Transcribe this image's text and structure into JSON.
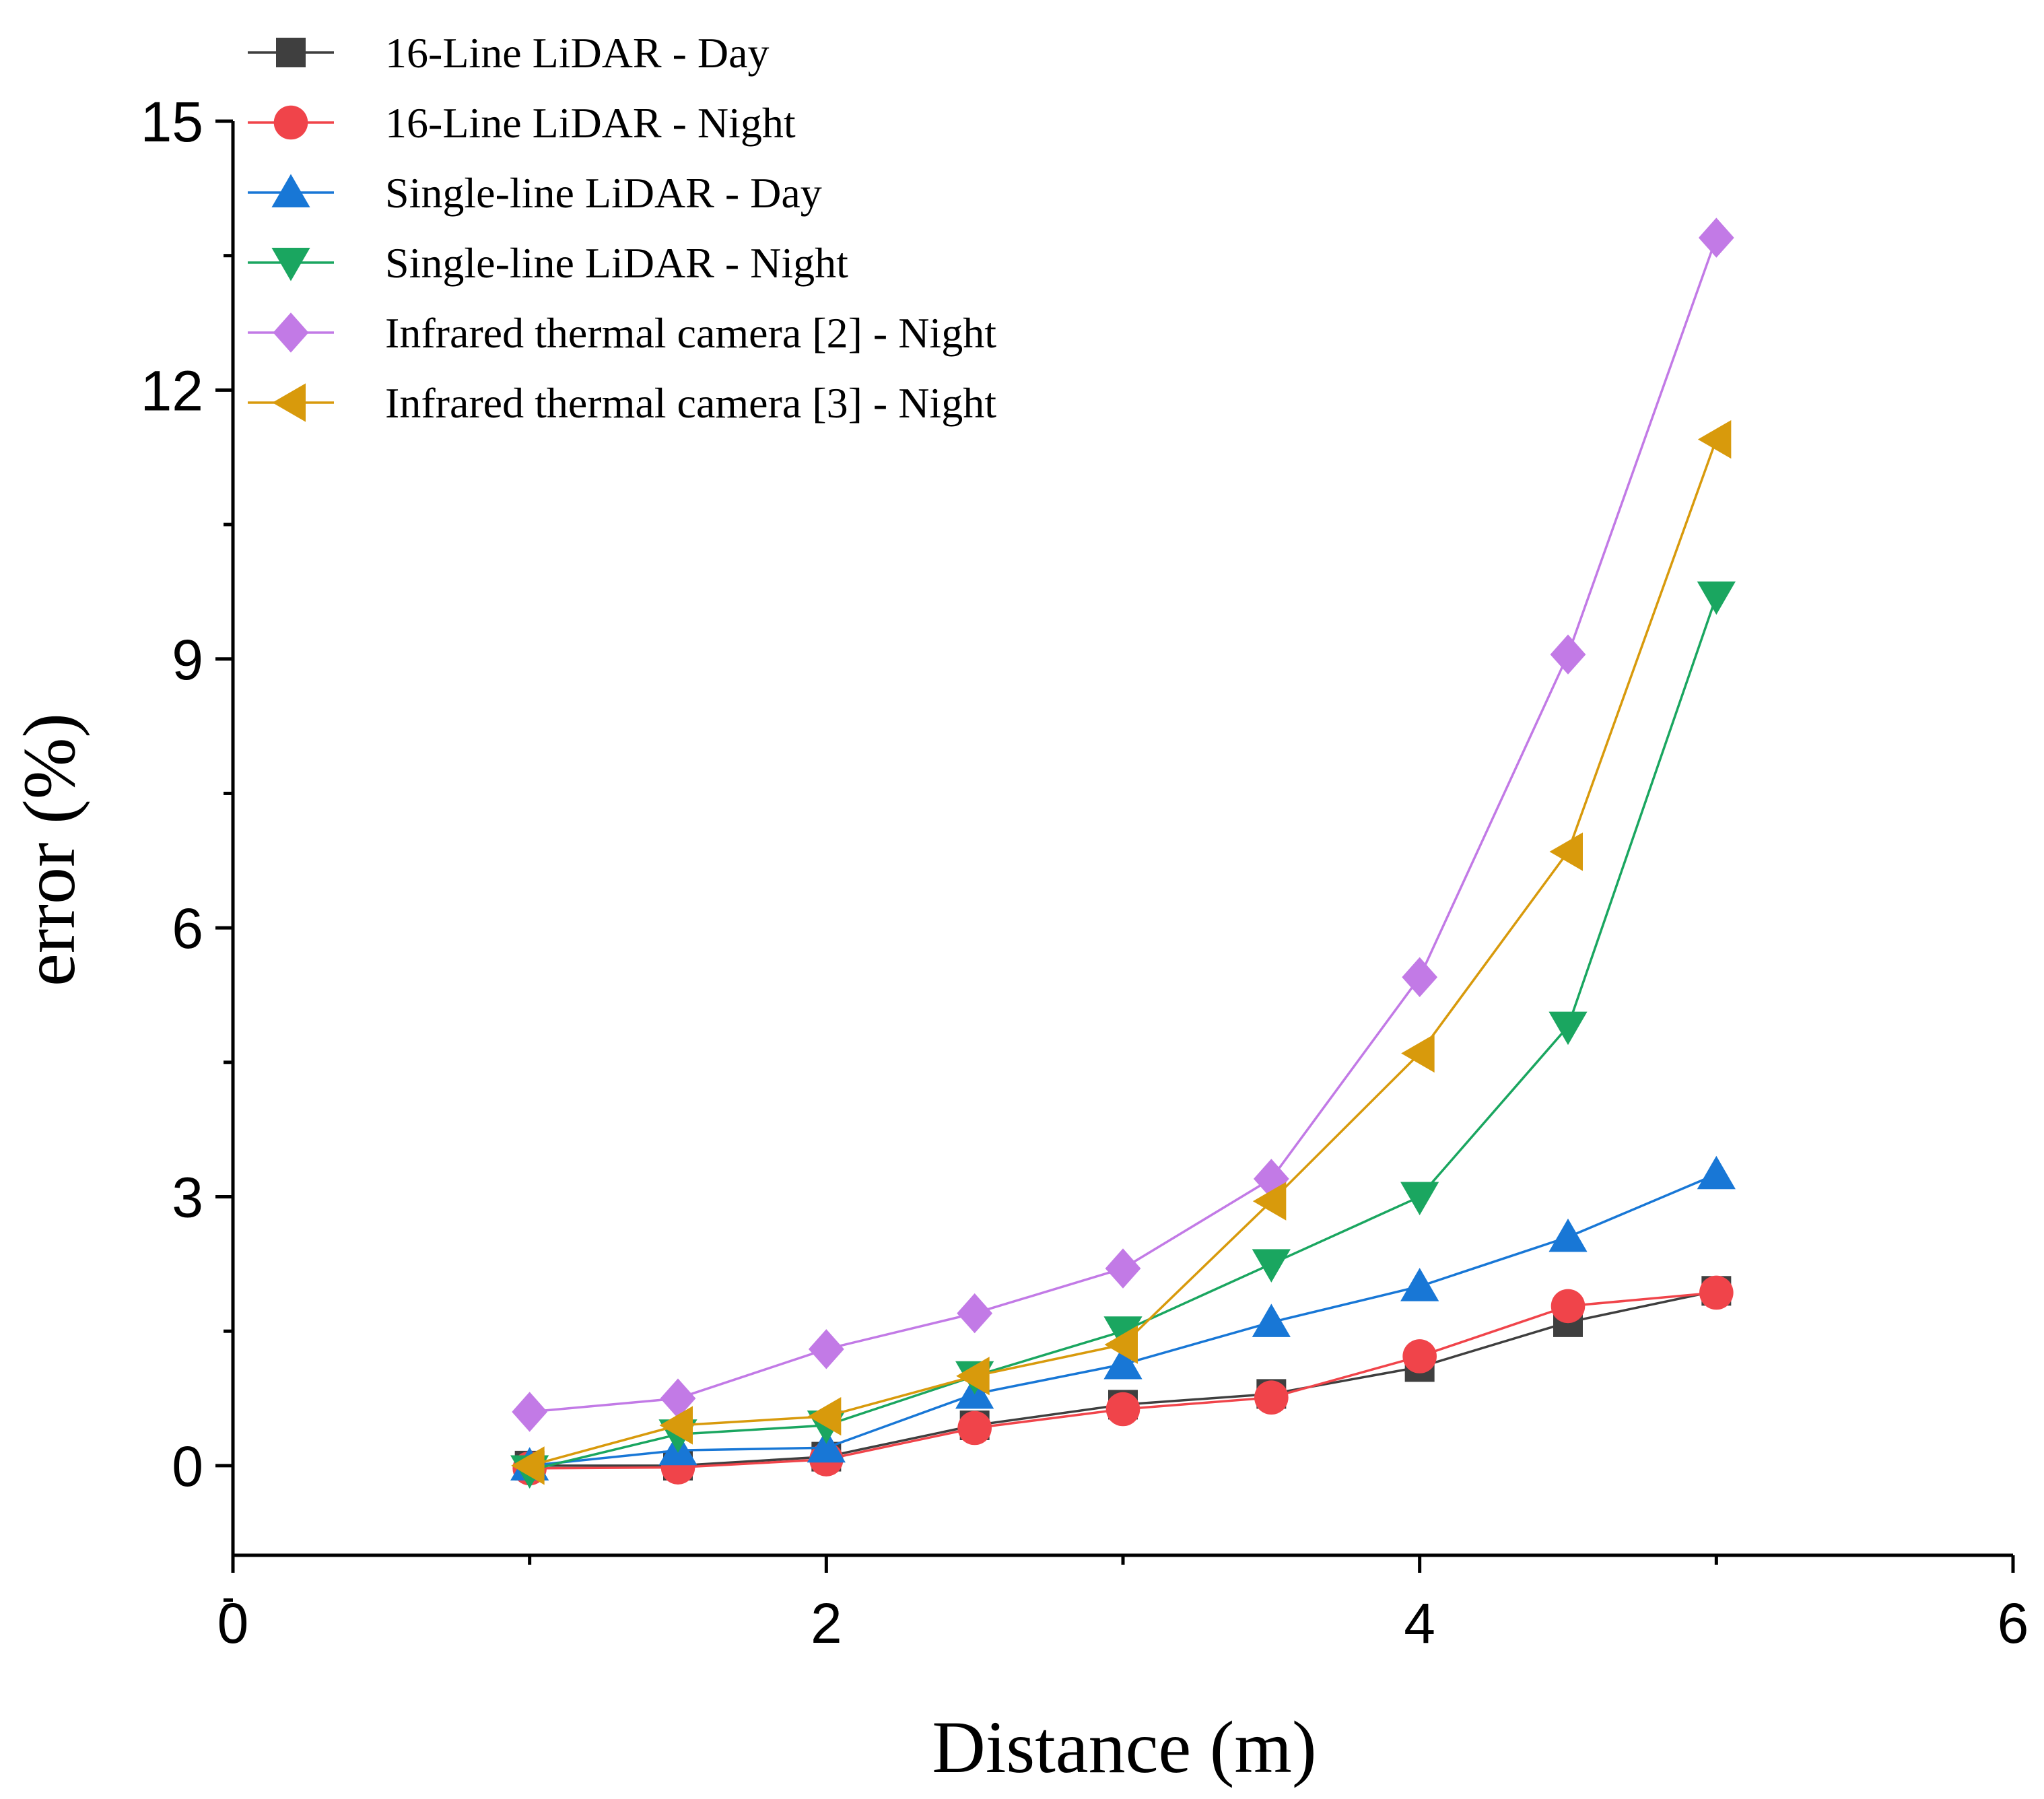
{
  "chart_data": {
    "type": "line",
    "title": "",
    "xlabel": "Distance (m)",
    "ylabel": "error (%)",
    "xlim": [
      0,
      6
    ],
    "ylim": [
      -1,
      15
    ],
    "xticks": [
      0,
      2,
      4,
      6
    ],
    "yticks": [
      0,
      3,
      6,
      9,
      12,
      15
    ],
    "grid": false,
    "legend_position": "top-left",
    "x": [
      1,
      1.5,
      2,
      2.5,
      3,
      3.5,
      4,
      4.5,
      5
    ],
    "series": [
      {
        "name": "16-Line LiDAR - Day",
        "color": "#3f3f3f",
        "marker": "square",
        "values": [
          0.0,
          0.0,
          0.1,
          0.45,
          0.68,
          0.8,
          1.1,
          1.6,
          1.95
        ]
      },
      {
        "name": "16-Line LiDAR - Night",
        "color": "#f0444a",
        "marker": "circle",
        "values": [
          -0.03,
          -0.02,
          0.07,
          0.42,
          0.63,
          0.76,
          1.22,
          1.78,
          1.93
        ]
      },
      {
        "name": "Single-line LiDAR - Day",
        "color": "#1877d6",
        "marker": "triangle-up",
        "values": [
          0.0,
          0.17,
          0.2,
          0.8,
          1.13,
          1.6,
          2.0,
          2.55,
          3.25
        ]
      },
      {
        "name": "Single-line LiDAR - Night",
        "color": "#1aa660",
        "marker": "triangle-down",
        "values": [
          -0.05,
          0.35,
          0.45,
          1.0,
          1.5,
          2.25,
          3.0,
          4.9,
          9.7
        ]
      },
      {
        "name": "Infrared thermal camera [2] - Night",
        "color": "#c27ae6",
        "marker": "diamond",
        "values": [
          0.6,
          0.75,
          1.3,
          1.7,
          2.2,
          3.2,
          5.45,
          9.05,
          13.7
        ]
      },
      {
        "name": "Infrared thermal camera [3] - Night",
        "color": "#d89a0c",
        "marker": "triangle-left",
        "values": [
          0.0,
          0.45,
          0.55,
          1.0,
          1.35,
          2.95,
          4.6,
          6.85,
          11.45
        ]
      }
    ]
  }
}
